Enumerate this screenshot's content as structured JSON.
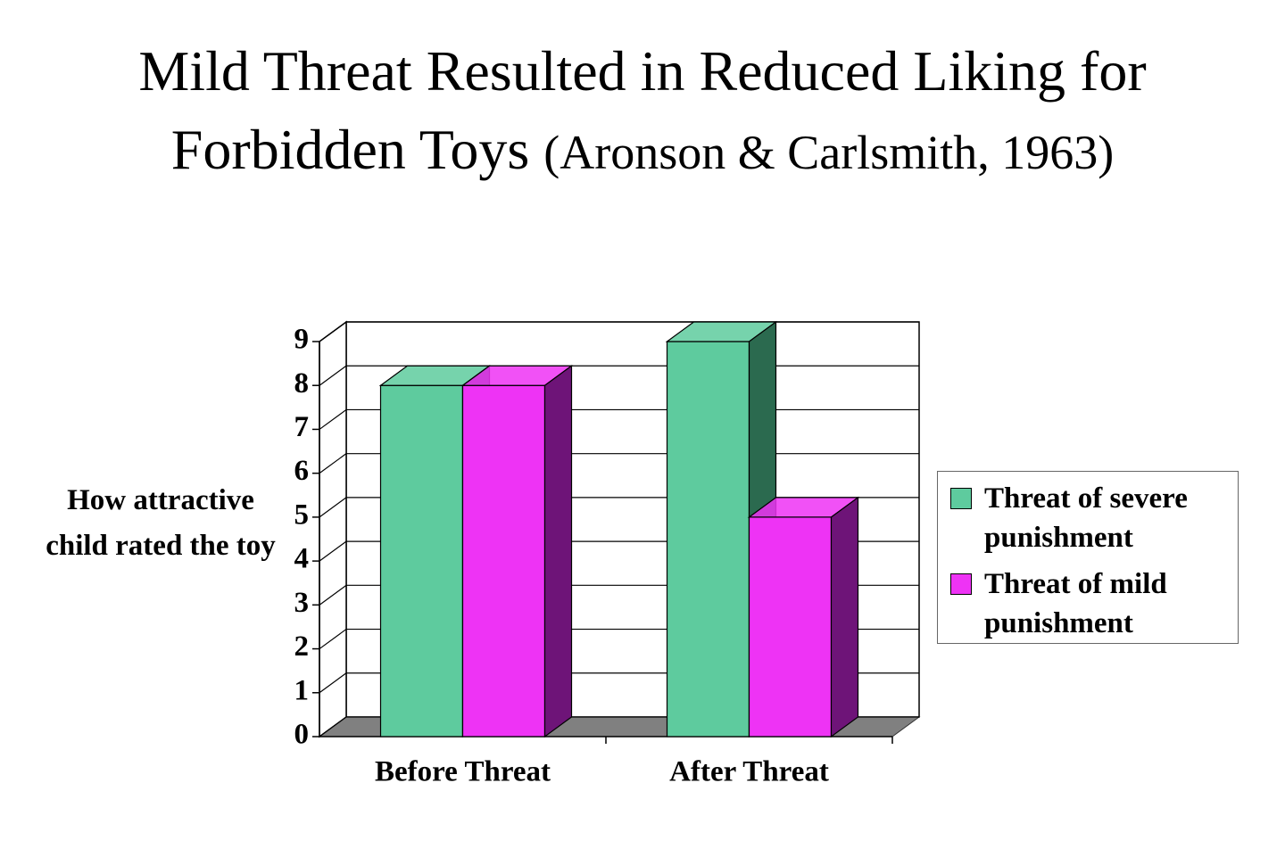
{
  "chart_data": {
    "type": "bar3d",
    "title": "Mild Threat Resulted in Reduced Liking for Forbidden Toys",
    "subtitle": "(Aronson & Carlsmith, 1963)",
    "y_label": "How attractive child rated the toy",
    "categories": [
      "Before Threat",
      "After Threat"
    ],
    "series": [
      {
        "name": "Threat of severe punishment",
        "color": "#5ecb9e",
        "side_color": "#2b6a4f",
        "values": [
          8,
          9
        ]
      },
      {
        "name": "Threat of mild punishment",
        "color": "#ee33f5",
        "side_color": "#6e1478",
        "values": [
          8,
          5
        ]
      }
    ],
    "ylim": [
      0,
      9
    ],
    "yticks": [
      0,
      1,
      2,
      3,
      4,
      5,
      6,
      7,
      8,
      9
    ],
    "grid": true,
    "legend": "right"
  }
}
